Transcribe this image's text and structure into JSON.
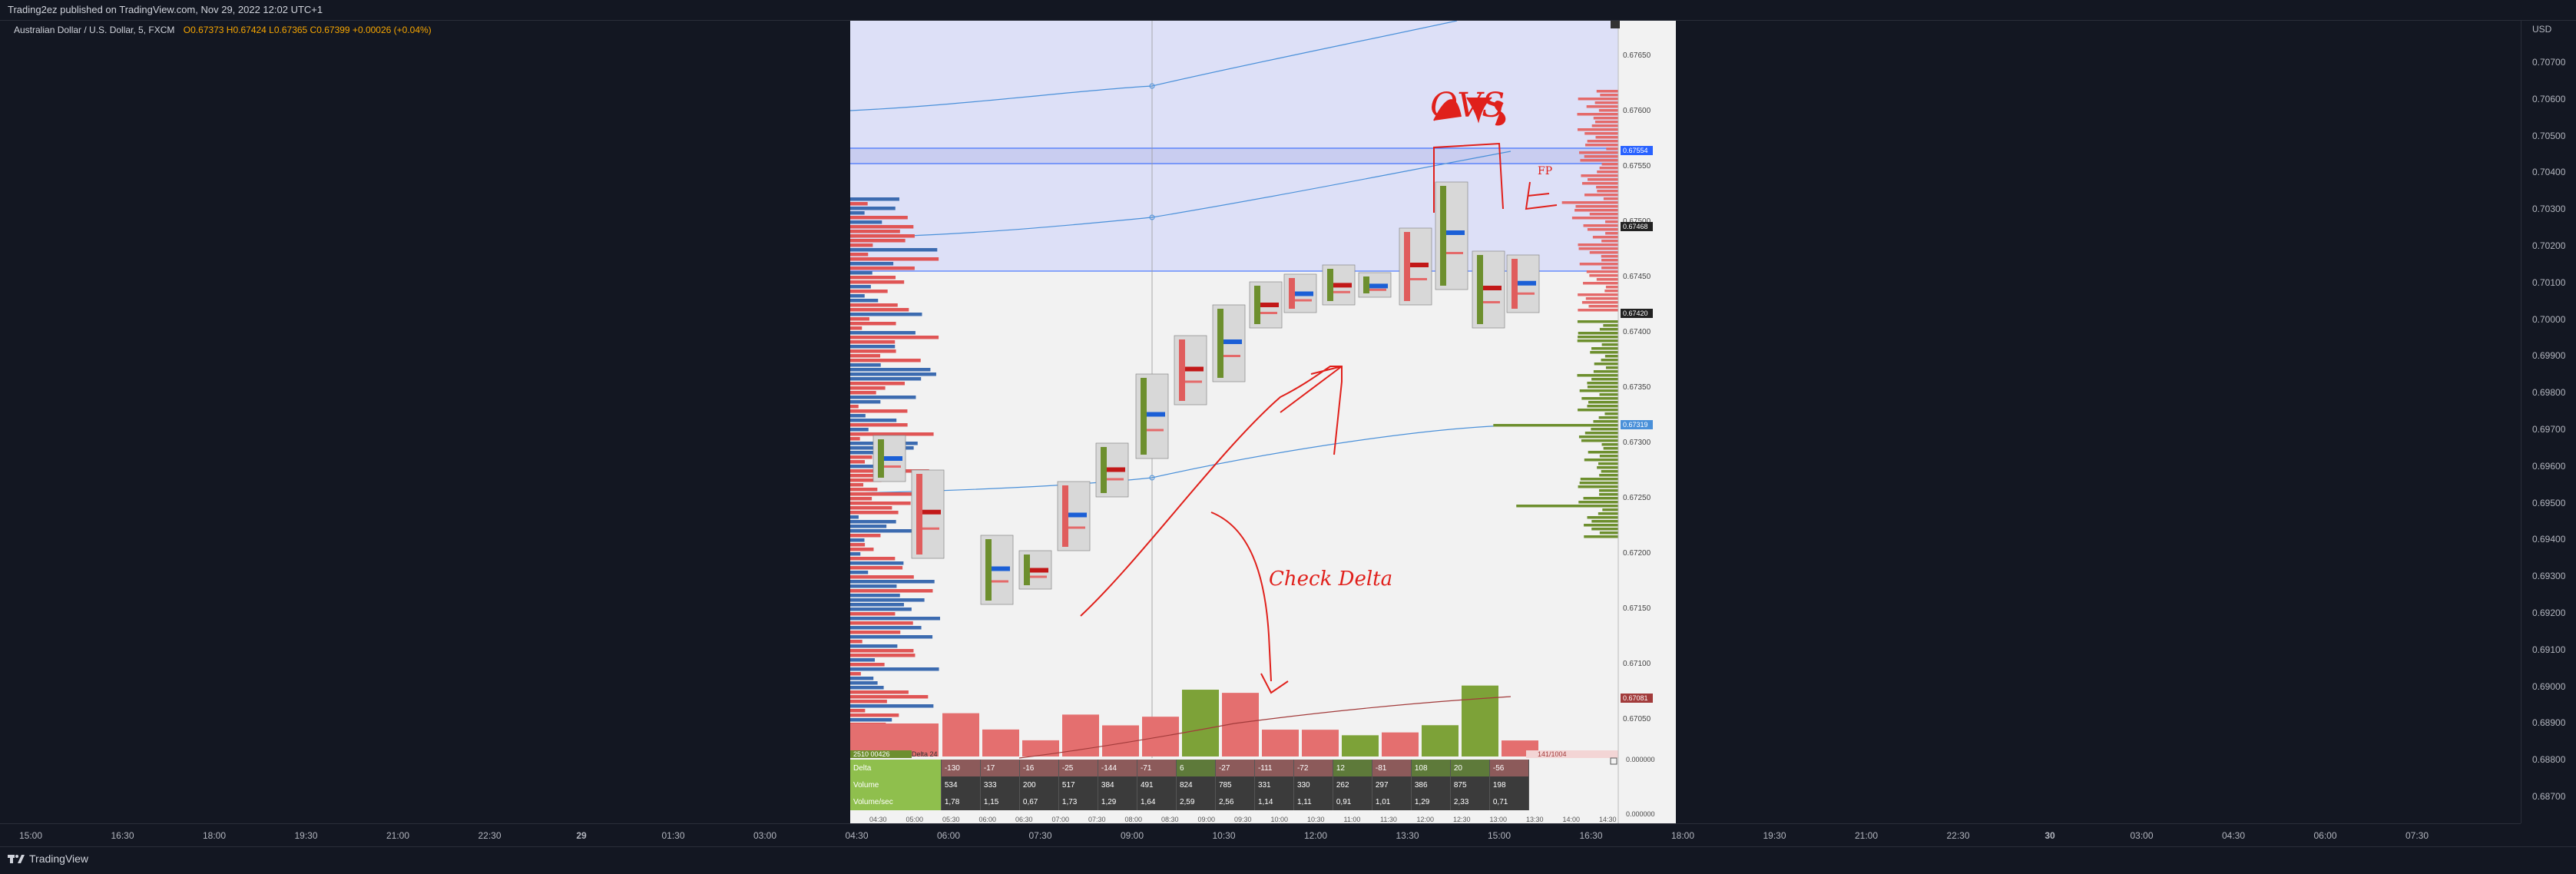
{
  "header": {
    "published_line": "Trading2ez published on TradingView.com, Nov 29, 2022 12:02 UTC+1"
  },
  "symbol": {
    "name": "Australian Dollar / U.S. Dollar, 5, FXCM",
    "ohlc": "O0.67373  H0.67424  L0.67365  C0.67399  +0.00026 (+0.04%)"
  },
  "price_axis": {
    "currency": "USD",
    "ticks": [
      "0.70700",
      "0.70600",
      "0.70500",
      "0.70400",
      "0.70300",
      "0.70200",
      "0.70100",
      "0.70000",
      "0.69900",
      "0.69800",
      "0.69700",
      "0.69600",
      "0.69500",
      "0.69400",
      "0.69300",
      "0.69200",
      "0.69100",
      "0.69000",
      "0.68900",
      "0.68800",
      "0.68700"
    ]
  },
  "time_axis": {
    "ticks": [
      "15:00",
      "16:30",
      "18:00",
      "19:30",
      "21:00",
      "22:30",
      "29",
      "01:30",
      "03:00",
      "04:30",
      "06:00",
      "07:30",
      "09:00",
      "10:30",
      "12:00",
      "13:30",
      "15:00",
      "16:30",
      "18:00",
      "19:30",
      "21:00",
      "22:30",
      "30",
      "03:00",
      "04:30",
      "06:00",
      "07:30"
    ]
  },
  "inner_chart": {
    "price_ticks": [
      "0.67650",
      "0.67600",
      "0.67550",
      "0.67500",
      "0.67450",
      "0.67400",
      "0.67350",
      "0.67300",
      "0.67250",
      "0.67200",
      "0.67150",
      "0.67100",
      "0.67050"
    ],
    "right_badges": {
      "top_blue": "0.67554",
      "black_1": "0.67468",
      "black_2": "0.67420",
      "blue_mid": "0.67319",
      "red_low": "0.67081",
      "zero_1": "0.000000",
      "zero_2": "0.000000"
    },
    "time_labels": [
      "04:30",
      "05:00",
      "05:30",
      "06:00",
      "06:30",
      "07:00",
      "07:30",
      "08:00",
      "08:30",
      "09:00",
      "09:30",
      "10:00",
      "10:30",
      "11:00",
      "11:30",
      "12:00",
      "12:30",
      "13:00",
      "13:30",
      "14:00",
      "14:30"
    ],
    "bottom_labels": {
      "left_green": "2510 00426",
      "left_green_2": "Delta 24",
      "right_pink": "141/1004"
    },
    "annotations": {
      "ovs": "OVS",
      "fp": "FP",
      "check_delta": "Check Delta"
    },
    "stats": {
      "rows": [
        {
          "label": "Delta",
          "values": [
            "-130",
            "-17",
            "-16",
            "-25",
            "-144",
            "-71",
            "6",
            "-27",
            "-111",
            "-72",
            "12",
            "-81",
            "108",
            "20",
            "-56"
          ]
        },
        {
          "label": "Volume",
          "values": [
            "534",
            "333",
            "200",
            "517",
            "384",
            "491",
            "824",
            "785",
            "331",
            "330",
            "262",
            "297",
            "386",
            "875",
            "198"
          ]
        },
        {
          "label": "Volume/sec",
          "values": [
            "1,78",
            "1,15",
            "0,67",
            "1,73",
            "1,29",
            "1,64",
            "2,59",
            "2,56",
            "1,14",
            "1,11",
            "0,91",
            "1,01",
            "1,29",
            "2,33",
            "0,71"
          ]
        }
      ]
    },
    "colors": {
      "up": "#6d8f2e",
      "down": "#e05d5d",
      "blue": "#2962ff",
      "shade": "#dde0f7",
      "vwap": "#4a90d9",
      "annotation": "#e0201b"
    }
  },
  "footer": {
    "brand": "TradingView"
  }
}
